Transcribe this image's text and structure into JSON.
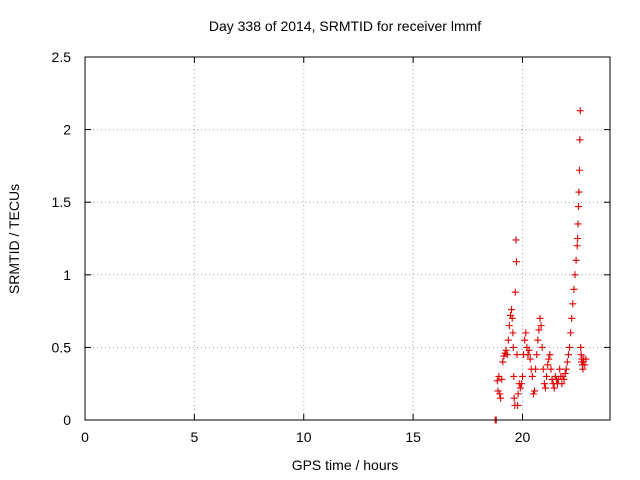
{
  "chart_data": {
    "type": "scatter",
    "title": "Day 338 of 2014, SRMTID for receiver lmmf",
    "xlabel": "GPS time / hours",
    "ylabel": "SRMTID / TECUs",
    "xlim": [
      0,
      24
    ],
    "ylim": [
      0,
      2.5
    ],
    "x_ticks": [
      0,
      5,
      10,
      15,
      20
    ],
    "x_tick_labels": [
      "0",
      "5",
      "10",
      "15",
      "20"
    ],
    "y_ticks": [
      0,
      0.5,
      1,
      1.5,
      2,
      2.5
    ],
    "y_tick_labels": [
      "0",
      "0.5",
      "1",
      "1.5",
      "2",
      "2.5"
    ],
    "grid": true,
    "marker": "+",
    "color": "#dd0000",
    "series": [
      {
        "name": "SRMTID",
        "x": [
          18.75,
          18.8,
          18.85,
          18.88,
          18.92,
          18.96,
          19.0,
          19.05,
          19.1,
          19.15,
          19.2,
          19.25,
          19.3,
          19.35,
          19.4,
          19.45,
          19.5,
          19.53,
          19.56,
          19.58,
          19.6,
          19.62,
          19.65,
          19.67,
          19.7,
          19.72,
          19.75,
          19.78,
          19.8,
          19.85,
          19.9,
          19.95,
          20.0,
          20.05,
          20.1,
          20.15,
          20.2,
          20.25,
          20.3,
          20.35,
          20.4,
          20.45,
          20.5,
          20.55,
          20.6,
          20.65,
          20.7,
          20.75,
          20.8,
          20.85,
          20.9,
          20.95,
          21.0,
          21.05,
          21.1,
          21.15,
          21.2,
          21.25,
          21.3,
          21.35,
          21.4,
          21.45,
          21.5,
          21.55,
          21.6,
          21.65,
          21.7,
          21.75,
          21.8,
          21.85,
          21.9,
          21.95,
          22.0,
          22.05,
          22.1,
          22.15,
          22.2,
          22.25,
          22.3,
          22.35,
          22.4,
          22.45,
          22.5,
          22.52,
          22.54,
          22.56,
          22.58,
          22.6,
          22.62,
          22.64,
          22.66,
          22.68,
          22.7,
          22.72,
          22.74,
          22.76,
          22.78,
          22.8,
          22.85,
          22.9
        ],
        "y": [
          0.0,
          0.0,
          0.27,
          0.2,
          0.3,
          0.18,
          0.15,
          0.28,
          0.4,
          0.44,
          0.46,
          0.48,
          0.45,
          0.55,
          0.65,
          0.72,
          0.76,
          0.7,
          0.6,
          0.5,
          0.3,
          0.15,
          0.1,
          0.88,
          1.24,
          1.09,
          0.45,
          0.1,
          0.18,
          0.25,
          0.22,
          0.25,
          0.3,
          0.45,
          0.55,
          0.6,
          0.5,
          0.45,
          0.48,
          0.42,
          0.35,
          0.3,
          0.18,
          0.2,
          0.35,
          0.45,
          0.55,
          0.62,
          0.7,
          0.65,
          0.5,
          0.35,
          0.25,
          0.22,
          0.3,
          0.38,
          0.42,
          0.45,
          0.35,
          0.28,
          0.25,
          0.22,
          0.3,
          0.28,
          0.25,
          0.28,
          0.35,
          0.3,
          0.25,
          0.3,
          0.28,
          0.32,
          0.35,
          0.4,
          0.45,
          0.5,
          0.6,
          0.7,
          0.8,
          0.9,
          1.0,
          1.1,
          1.2,
          1.25,
          1.35,
          1.47,
          1.57,
          1.72,
          1.93,
          2.13,
          0.5,
          0.45,
          0.4,
          0.42,
          0.38,
          0.35,
          0.4,
          0.42,
          0.38,
          0.42
        ]
      }
    ]
  }
}
